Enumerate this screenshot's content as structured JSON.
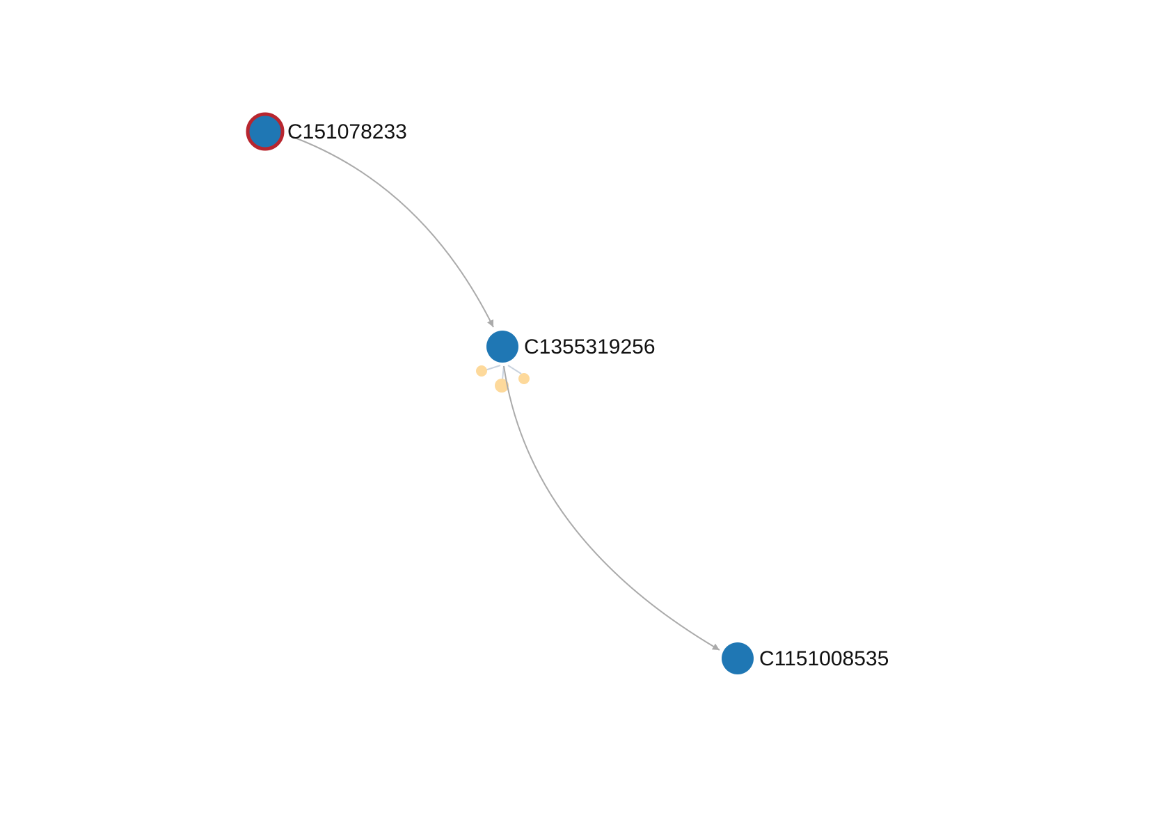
{
  "graph": {
    "colors": {
      "background": "#ffffff",
      "node_fill": "#1f77b4",
      "selected_stroke": "#b8262f",
      "edge": "#aaaaaa",
      "satellite_fill": "#fdd99b",
      "satellite_link": "#c8d2de",
      "label": "#111111"
    },
    "nodes": [
      {
        "id": "C151078233",
        "label": "C151078233",
        "selected": true
      },
      {
        "id": "C1355319256",
        "label": "C1355319256",
        "selected": false
      },
      {
        "id": "C1151008535",
        "label": "C1151008535",
        "selected": false
      }
    ],
    "edges": [
      {
        "from": "C151078233",
        "to": "C1355319256",
        "directed": true
      },
      {
        "from": "C1355319256",
        "to": "C1151008535",
        "directed": true
      }
    ],
    "satellites": {
      "attached_to": "C1355319256",
      "count": 3
    }
  }
}
